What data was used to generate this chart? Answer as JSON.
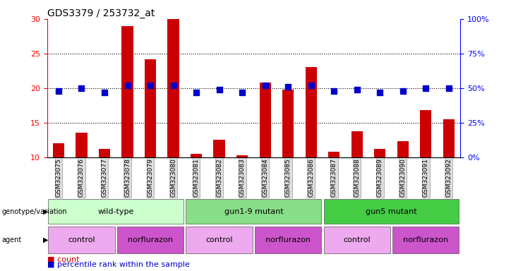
{
  "title": "GDS3379 / 253732_at",
  "samples": [
    "GSM323075",
    "GSM323076",
    "GSM323077",
    "GSM323078",
    "GSM323079",
    "GSM323080",
    "GSM323081",
    "GSM323082",
    "GSM323083",
    "GSM323084",
    "GSM323085",
    "GSM323086",
    "GSM323087",
    "GSM323088",
    "GSM323089",
    "GSM323090",
    "GSM323091",
    "GSM323092"
  ],
  "counts": [
    12.0,
    13.5,
    11.2,
    29.0,
    24.2,
    30.0,
    10.5,
    12.5,
    10.3,
    20.8,
    19.8,
    23.0,
    10.8,
    13.8,
    11.2,
    12.3,
    16.8,
    15.5
  ],
  "percentiles": [
    48,
    50,
    47,
    52,
    52,
    52,
    47,
    49,
    47,
    52,
    51,
    52,
    48,
    49,
    47,
    48,
    50,
    50
  ],
  "ylim_left": [
    10,
    30
  ],
  "ylim_right": [
    0,
    100
  ],
  "yticks_left": [
    10,
    15,
    20,
    25,
    30
  ],
  "yticks_right": [
    0,
    25,
    50,
    75,
    100
  ],
  "bar_color": "#cc0000",
  "dot_color": "#0000cc",
  "bar_width": 0.5,
  "dot_size": 35,
  "groups": [
    {
      "label": "wild-type",
      "start": 0,
      "end": 5,
      "color": "#ccffcc"
    },
    {
      "label": "gun1-9 mutant",
      "start": 6,
      "end": 11,
      "color": "#88dd88"
    },
    {
      "label": "gun5 mutant",
      "start": 12,
      "end": 17,
      "color": "#44cc44"
    }
  ],
  "agents": [
    {
      "label": "control",
      "start": 0,
      "end": 2,
      "color": "#eeaaee"
    },
    {
      "label": "norflurazon",
      "start": 3,
      "end": 5,
      "color": "#cc55cc"
    },
    {
      "label": "control",
      "start": 6,
      "end": 8,
      "color": "#eeaaee"
    },
    {
      "label": "norflurazon",
      "start": 9,
      "end": 11,
      "color": "#cc55cc"
    },
    {
      "label": "control",
      "start": 12,
      "end": 14,
      "color": "#eeaaee"
    },
    {
      "label": "norflurazon",
      "start": 15,
      "end": 17,
      "color": "#cc55cc"
    }
  ],
  "legend_count_color": "#cc0000",
  "legend_dot_color": "#0000cc"
}
